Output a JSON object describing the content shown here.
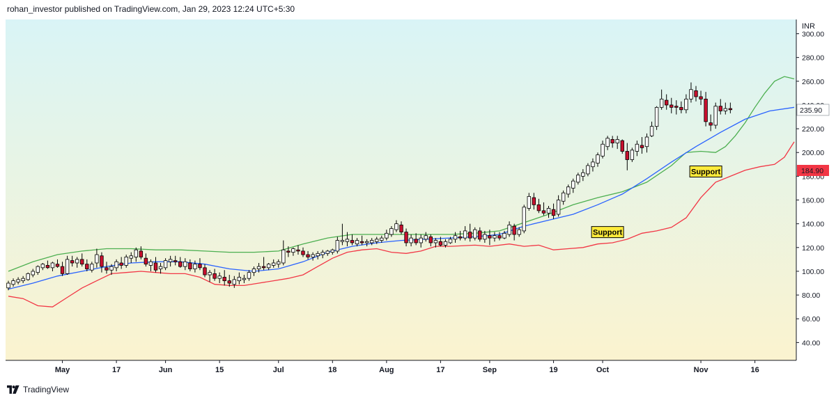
{
  "header": {
    "publisher_line": "rohan_investor published on TradingView.com, Jan 29, 2023 12:24 UTC+5:30"
  },
  "footer": {
    "brand": "TradingView"
  },
  "colors": {
    "bg_top": "#d9f4f6",
    "bg_bottom": "#fbf3cf",
    "candle_up": "#ffffff",
    "candle_down": "#c8102e",
    "wick": "#000000",
    "upper_band": "#4caf50",
    "middle_band": "#2962ff",
    "lower_band": "#f23645",
    "support_label_bg": "#ffeb3b",
    "price_label_red": "#f23645"
  },
  "chart_data": {
    "type": "candlestick",
    "currency": "INR",
    "ylim": [
      25,
      312
    ],
    "y_ticks": [
      40,
      60,
      80,
      100,
      120,
      140,
      160,
      180,
      200,
      220,
      240,
      260,
      280,
      300
    ],
    "y_tick_labels": [
      "40.00",
      "60.00",
      "80.00",
      "100.00",
      "120.00",
      "140.00",
      "160.00",
      "180.00",
      "200.00",
      "220.00",
      "240.00",
      "260.00",
      "280.00",
      "300.00"
    ],
    "x_tick_labels": [
      {
        "label": "May",
        "bar": 11
      },
      {
        "label": "17",
        "bar": 22
      },
      {
        "label": "Jun",
        "bar": 32
      },
      {
        "label": "15",
        "bar": 43
      },
      {
        "label": "Jul",
        "bar": 55
      },
      {
        "label": "18",
        "bar": 66
      },
      {
        "label": "Aug",
        "bar": 77
      },
      {
        "label": "17",
        "bar": 88
      },
      {
        "label": "Sep",
        "bar": 98
      },
      {
        "label": "19",
        "bar": 111
      },
      {
        "label": "Oct",
        "bar": 121
      },
      {
        "label": "Nov",
        "bar": 141
      },
      {
        "label": "16",
        "bar": 152
      }
    ],
    "last_price_label": "235.90",
    "lower_band_label": "184.90",
    "annotations": [
      {
        "text": "Support",
        "bar": 122,
        "price": 133
      },
      {
        "text": "Support",
        "bar": 142,
        "price": 184
      }
    ],
    "ohlc": [
      [
        86,
        92,
        84,
        90
      ],
      [
        89,
        94,
        87,
        92
      ],
      [
        91,
        95,
        89,
        93
      ],
      [
        92,
        96,
        90,
        94
      ],
      [
        93,
        99,
        92,
        98
      ],
      [
        97,
        102,
        95,
        100
      ],
      [
        99,
        105,
        97,
        104
      ],
      [
        103,
        107,
        101,
        106
      ],
      [
        105,
        109,
        102,
        103
      ],
      [
        103,
        108,
        100,
        107
      ],
      [
        106,
        110,
        103,
        104
      ],
      [
        104,
        108,
        96,
        98
      ],
      [
        98,
        113,
        97,
        110
      ],
      [
        109,
        113,
        104,
        107
      ],
      [
        107,
        112,
        103,
        110
      ],
      [
        110,
        115,
        104,
        106
      ],
      [
        106,
        110,
        100,
        102
      ],
      [
        101,
        108,
        99,
        106
      ],
      [
        107,
        119,
        103,
        114
      ],
      [
        113,
        116,
        99,
        104
      ],
      [
        103,
        108,
        98,
        101
      ],
      [
        101,
        106,
        97,
        104
      ],
      [
        103,
        110,
        100,
        108
      ],
      [
        107,
        112,
        102,
        105
      ],
      [
        105,
        114,
        103,
        112
      ],
      [
        111,
        116,
        107,
        113
      ],
      [
        112,
        120,
        108,
        118
      ],
      [
        117,
        121,
        110,
        112
      ],
      [
        111,
        115,
        104,
        106
      ],
      [
        105,
        110,
        100,
        108
      ],
      [
        107,
        112,
        99,
        101
      ],
      [
        102,
        107,
        98,
        104
      ],
      [
        103,
        111,
        101,
        109
      ],
      [
        108,
        113,
        104,
        110
      ],
      [
        109,
        113,
        105,
        108
      ],
      [
        108,
        112,
        103,
        104
      ],
      [
        104,
        111,
        101,
        108
      ],
      [
        107,
        110,
        100,
        102
      ],
      [
        102,
        109,
        99,
        106
      ],
      [
        106,
        111,
        101,
        103
      ],
      [
        103,
        106,
        95,
        97
      ],
      [
        97,
        101,
        91,
        99
      ],
      [
        98,
        102,
        92,
        94
      ],
      [
        94,
        99,
        90,
        96
      ],
      [
        95,
        101,
        88,
        92
      ],
      [
        92,
        97,
        87,
        90
      ],
      [
        89,
        96,
        86,
        93
      ],
      [
        92,
        99,
        89,
        95
      ],
      [
        93,
        97,
        90,
        94
      ],
      [
        94,
        101,
        92,
        99
      ],
      [
        99,
        104,
        96,
        102
      ],
      [
        102,
        107,
        99,
        104
      ],
      [
        104,
        112,
        101,
        103
      ],
      [
        103,
        107,
        101,
        106
      ],
      [
        105,
        110,
        103,
        107
      ],
      [
        106,
        110,
        103,
        108
      ],
      [
        107,
        126,
        105,
        118
      ],
      [
        117,
        121,
        112,
        116
      ],
      [
        116,
        120,
        113,
        119
      ],
      [
        118,
        122,
        114,
        117
      ],
      [
        117,
        120,
        112,
        114
      ],
      [
        114,
        117,
        110,
        112
      ],
      [
        112,
        116,
        109,
        114
      ],
      [
        113,
        117,
        110,
        115
      ],
      [
        114,
        118,
        111,
        116
      ],
      [
        115,
        118,
        113,
        117
      ],
      [
        116,
        119,
        114,
        118
      ],
      [
        117,
        129,
        115,
        126
      ],
      [
        125,
        140,
        122,
        126
      ],
      [
        125,
        133,
        121,
        127
      ],
      [
        126,
        131,
        122,
        124
      ],
      [
        123,
        128,
        121,
        126
      ],
      [
        125,
        130,
        122,
        124
      ],
      [
        124,
        127,
        121,
        125
      ],
      [
        124,
        128,
        122,
        126
      ],
      [
        125,
        129,
        123,
        127
      ],
      [
        126,
        130,
        124,
        128
      ],
      [
        128,
        135,
        126,
        132
      ],
      [
        131,
        138,
        129,
        136
      ],
      [
        135,
        143,
        133,
        140
      ],
      [
        139,
        142,
        131,
        133
      ],
      [
        133,
        136,
        121,
        124
      ],
      [
        124,
        131,
        121,
        128
      ],
      [
        127,
        132,
        122,
        124
      ],
      [
        124,
        131,
        120,
        128
      ],
      [
        127,
        133,
        125,
        130
      ],
      [
        129,
        131,
        121,
        124
      ],
      [
        124,
        128,
        120,
        126
      ],
      [
        125,
        129,
        121,
        122
      ],
      [
        122,
        127,
        120,
        125
      ],
      [
        124,
        129,
        123,
        127
      ],
      [
        127,
        133,
        124,
        130
      ],
      [
        129,
        134,
        126,
        128
      ],
      [
        128,
        138,
        126,
        134
      ],
      [
        133,
        140,
        125,
        128
      ],
      [
        128,
        137,
        126,
        135
      ],
      [
        134,
        137,
        125,
        127
      ],
      [
        127,
        134,
        124,
        131
      ],
      [
        130,
        135,
        122,
        128
      ],
      [
        128,
        133,
        125,
        130
      ],
      [
        130,
        133,
        126,
        128
      ],
      [
        128,
        134,
        127,
        132
      ],
      [
        131,
        142,
        129,
        139
      ],
      [
        138,
        140,
        126,
        131
      ],
      [
        131,
        137,
        129,
        135
      ],
      [
        134,
        156,
        132,
        154
      ],
      [
        153,
        166,
        151,
        163
      ],
      [
        162,
        166,
        152,
        156
      ],
      [
        156,
        161,
        149,
        151
      ],
      [
        151,
        158,
        147,
        149
      ],
      [
        149,
        155,
        145,
        153
      ],
      [
        152,
        157,
        144,
        147
      ],
      [
        148,
        164,
        146,
        160
      ],
      [
        159,
        168,
        156,
        166
      ],
      [
        165,
        173,
        162,
        171
      ],
      [
        170,
        178,
        166,
        176
      ],
      [
        175,
        183,
        173,
        181
      ],
      [
        180,
        186,
        176,
        183
      ],
      [
        182,
        191,
        180,
        189
      ],
      [
        188,
        195,
        184,
        192
      ],
      [
        191,
        200,
        188,
        198
      ],
      [
        197,
        210,
        195,
        207
      ],
      [
        205,
        214,
        202,
        212
      ],
      [
        211,
        214,
        204,
        208
      ],
      [
        208,
        214,
        203,
        211
      ],
      [
        210,
        211,
        199,
        201
      ],
      [
        201,
        208,
        185,
        194
      ],
      [
        194,
        204,
        192,
        202
      ],
      [
        201,
        210,
        197,
        207
      ],
      [
        206,
        213,
        199,
        204
      ],
      [
        205,
        216,
        200,
        213
      ],
      [
        214,
        226,
        213,
        222
      ],
      [
        222,
        239,
        219,
        238
      ],
      [
        238,
        253,
        236,
        245
      ],
      [
        244,
        249,
        236,
        240
      ],
      [
        240,
        246,
        233,
        238
      ],
      [
        239,
        244,
        232,
        238
      ],
      [
        238,
        243,
        233,
        236
      ],
      [
        236,
        249,
        233,
        245
      ],
      [
        245,
        259,
        242,
        253
      ],
      [
        252,
        256,
        243,
        247
      ],
      [
        247,
        252,
        240,
        245
      ],
      [
        245,
        251,
        222,
        226
      ],
      [
        225,
        232,
        218,
        223
      ],
      [
        223,
        242,
        220,
        239
      ],
      [
        239,
        245,
        232,
        235
      ],
      [
        235,
        242,
        232,
        237
      ],
      [
        237,
        242,
        233,
        236
      ]
    ],
    "upper_band": [
      [
        0,
        100
      ],
      [
        5,
        108
      ],
      [
        10,
        114
      ],
      [
        15,
        117
      ],
      [
        20,
        119
      ],
      [
        25,
        119
      ],
      [
        30,
        118
      ],
      [
        35,
        118
      ],
      [
        40,
        117
      ],
      [
        45,
        116
      ],
      [
        50,
        116
      ],
      [
        55,
        117
      ],
      [
        60,
        123
      ],
      [
        65,
        128
      ],
      [
        70,
        131
      ],
      [
        75,
        131
      ],
      [
        80,
        131
      ],
      [
        85,
        131
      ],
      [
        90,
        131
      ],
      [
        95,
        132
      ],
      [
        100,
        134
      ],
      [
        105,
        141
      ],
      [
        110,
        148
      ],
      [
        115,
        156
      ],
      [
        120,
        162
      ],
      [
        125,
        167
      ],
      [
        130,
        175
      ],
      [
        135,
        189
      ],
      [
        138,
        200
      ],
      [
        141,
        201
      ],
      [
        144,
        200
      ],
      [
        146,
        205
      ],
      [
        148,
        214
      ],
      [
        150,
        225
      ],
      [
        152,
        238
      ],
      [
        154,
        250
      ],
      [
        156,
        260
      ],
      [
        158,
        264
      ],
      [
        160,
        262
      ]
    ],
    "middle_band": [
      [
        0,
        85
      ],
      [
        5,
        90
      ],
      [
        10,
        96
      ],
      [
        15,
        100
      ],
      [
        20,
        104
      ],
      [
        25,
        107
      ],
      [
        30,
        108
      ],
      [
        35,
        108
      ],
      [
        40,
        106
      ],
      [
        45,
        102
      ],
      [
        50,
        100
      ],
      [
        55,
        102
      ],
      [
        60,
        108
      ],
      [
        65,
        116
      ],
      [
        70,
        121
      ],
      [
        75,
        124
      ],
      [
        80,
        126
      ],
      [
        85,
        127
      ],
      [
        90,
        128
      ],
      [
        95,
        129
      ],
      [
        100,
        131
      ],
      [
        105,
        138
      ],
      [
        110,
        143
      ],
      [
        115,
        148
      ],
      [
        120,
        156
      ],
      [
        125,
        165
      ],
      [
        130,
        178
      ],
      [
        135,
        192
      ],
      [
        140,
        205
      ],
      [
        145,
        217
      ],
      [
        150,
        228
      ],
      [
        155,
        235
      ],
      [
        160,
        238
      ]
    ],
    "lower_band": [
      [
        0,
        79
      ],
      [
        3,
        77
      ],
      [
        6,
        71
      ],
      [
        9,
        70
      ],
      [
        12,
        78
      ],
      [
        15,
        86
      ],
      [
        18,
        92
      ],
      [
        21,
        98
      ],
      [
        24,
        99
      ],
      [
        27,
        100
      ],
      [
        30,
        99
      ],
      [
        33,
        98
      ],
      [
        36,
        98
      ],
      [
        39,
        95
      ],
      [
        42,
        89
      ],
      [
        45,
        88
      ],
      [
        48,
        88
      ],
      [
        51,
        90
      ],
      [
        54,
        92
      ],
      [
        57,
        94
      ],
      [
        60,
        97
      ],
      [
        63,
        104
      ],
      [
        66,
        111
      ],
      [
        69,
        116
      ],
      [
        72,
        118
      ],
      [
        75,
        119
      ],
      [
        78,
        116
      ],
      [
        81,
        115
      ],
      [
        84,
        117
      ],
      [
        87,
        121
      ],
      [
        90,
        121
      ],
      [
        95,
        122
      ],
      [
        98,
        121
      ],
      [
        102,
        123
      ],
      [
        105,
        121
      ],
      [
        108,
        122
      ],
      [
        111,
        118
      ],
      [
        114,
        119
      ],
      [
        117,
        120
      ],
      [
        120,
        123
      ],
      [
        123,
        124
      ],
      [
        126,
        127
      ],
      [
        129,
        132
      ],
      [
        132,
        134
      ],
      [
        135,
        137
      ],
      [
        138,
        145
      ],
      [
        141,
        162
      ],
      [
        144,
        175
      ],
      [
        147,
        180
      ],
      [
        150,
        185
      ],
      [
        153,
        188
      ],
      [
        156,
        190
      ],
      [
        158,
        196
      ],
      [
        160,
        209
      ]
    ]
  }
}
